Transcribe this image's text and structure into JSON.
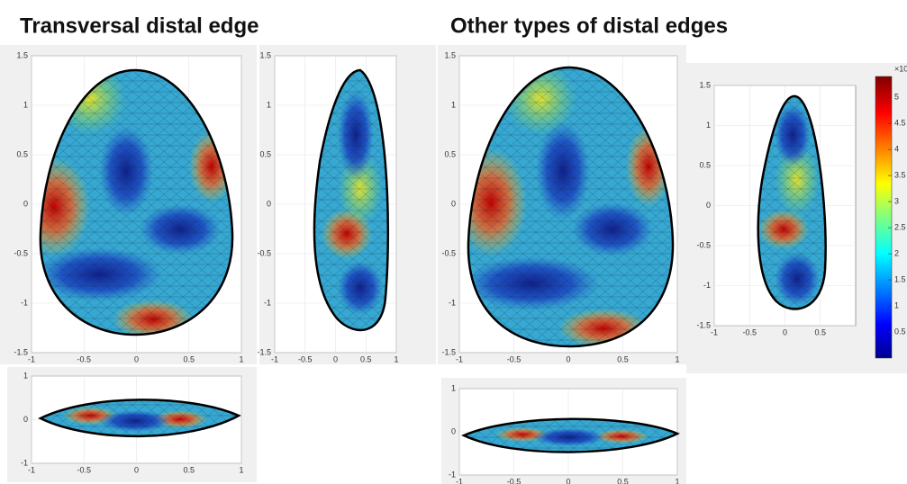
{
  "headings": [
    "Transversal distal edge",
    "Other types of distal edges"
  ],
  "panels": [
    {
      "xlim": [
        -1,
        1
      ],
      "ylim": [
        -1.5,
        1.5
      ],
      "xticks": [
        -1,
        -0.5,
        0,
        0.5,
        1
      ],
      "yticks": [
        -1.5,
        -1,
        -0.5,
        0,
        0.5,
        1,
        1.5
      ]
    },
    {
      "xlim": [
        -1,
        1
      ],
      "ylim": [
        -1.5,
        1.5
      ],
      "xticks": [
        -1,
        -0.5,
        0,
        0.5,
        1
      ],
      "yticks": [
        -1.5,
        -1,
        -0.5,
        0,
        0.5,
        1,
        1.5
      ]
    },
    {
      "xlim": [
        -1,
        1
      ],
      "ylim": [
        -1,
        1
      ],
      "xticks": [
        -1,
        -0.5,
        0,
        0.5,
        1
      ],
      "yticks": [
        -1,
        0,
        1
      ]
    },
    {
      "xlim": [
        -1,
        1
      ],
      "ylim": [
        -1.5,
        1.5
      ],
      "xticks": [
        -1,
        -0.5,
        0,
        0.5,
        1
      ],
      "yticks": [
        -1.5,
        -1,
        -0.5,
        0,
        0.5,
        1,
        1.5
      ]
    },
    {
      "xlim": [
        -1,
        1
      ],
      "ylim": [
        -1.5,
        1.5
      ],
      "xticks": [
        -1,
        -0.5,
        0,
        0.5
      ],
      "yticks": [
        -1.5,
        -1,
        -0.5,
        0,
        0.5,
        1,
        1.5
      ]
    },
    {
      "xlim": [
        -1,
        1
      ],
      "ylim": [
        -1,
        1
      ],
      "xticks": [
        -1,
        -0.5,
        0,
        0.5,
        1
      ],
      "yticks": [
        -1,
        0,
        1
      ]
    }
  ],
  "colorbar": {
    "exponent_label": "×10",
    "lim": [
      0,
      5.4
    ],
    "ticks": [
      0.5,
      1,
      1.5,
      2,
      2.5,
      3,
      3.5,
      4,
      4.5,
      5
    ]
  }
}
